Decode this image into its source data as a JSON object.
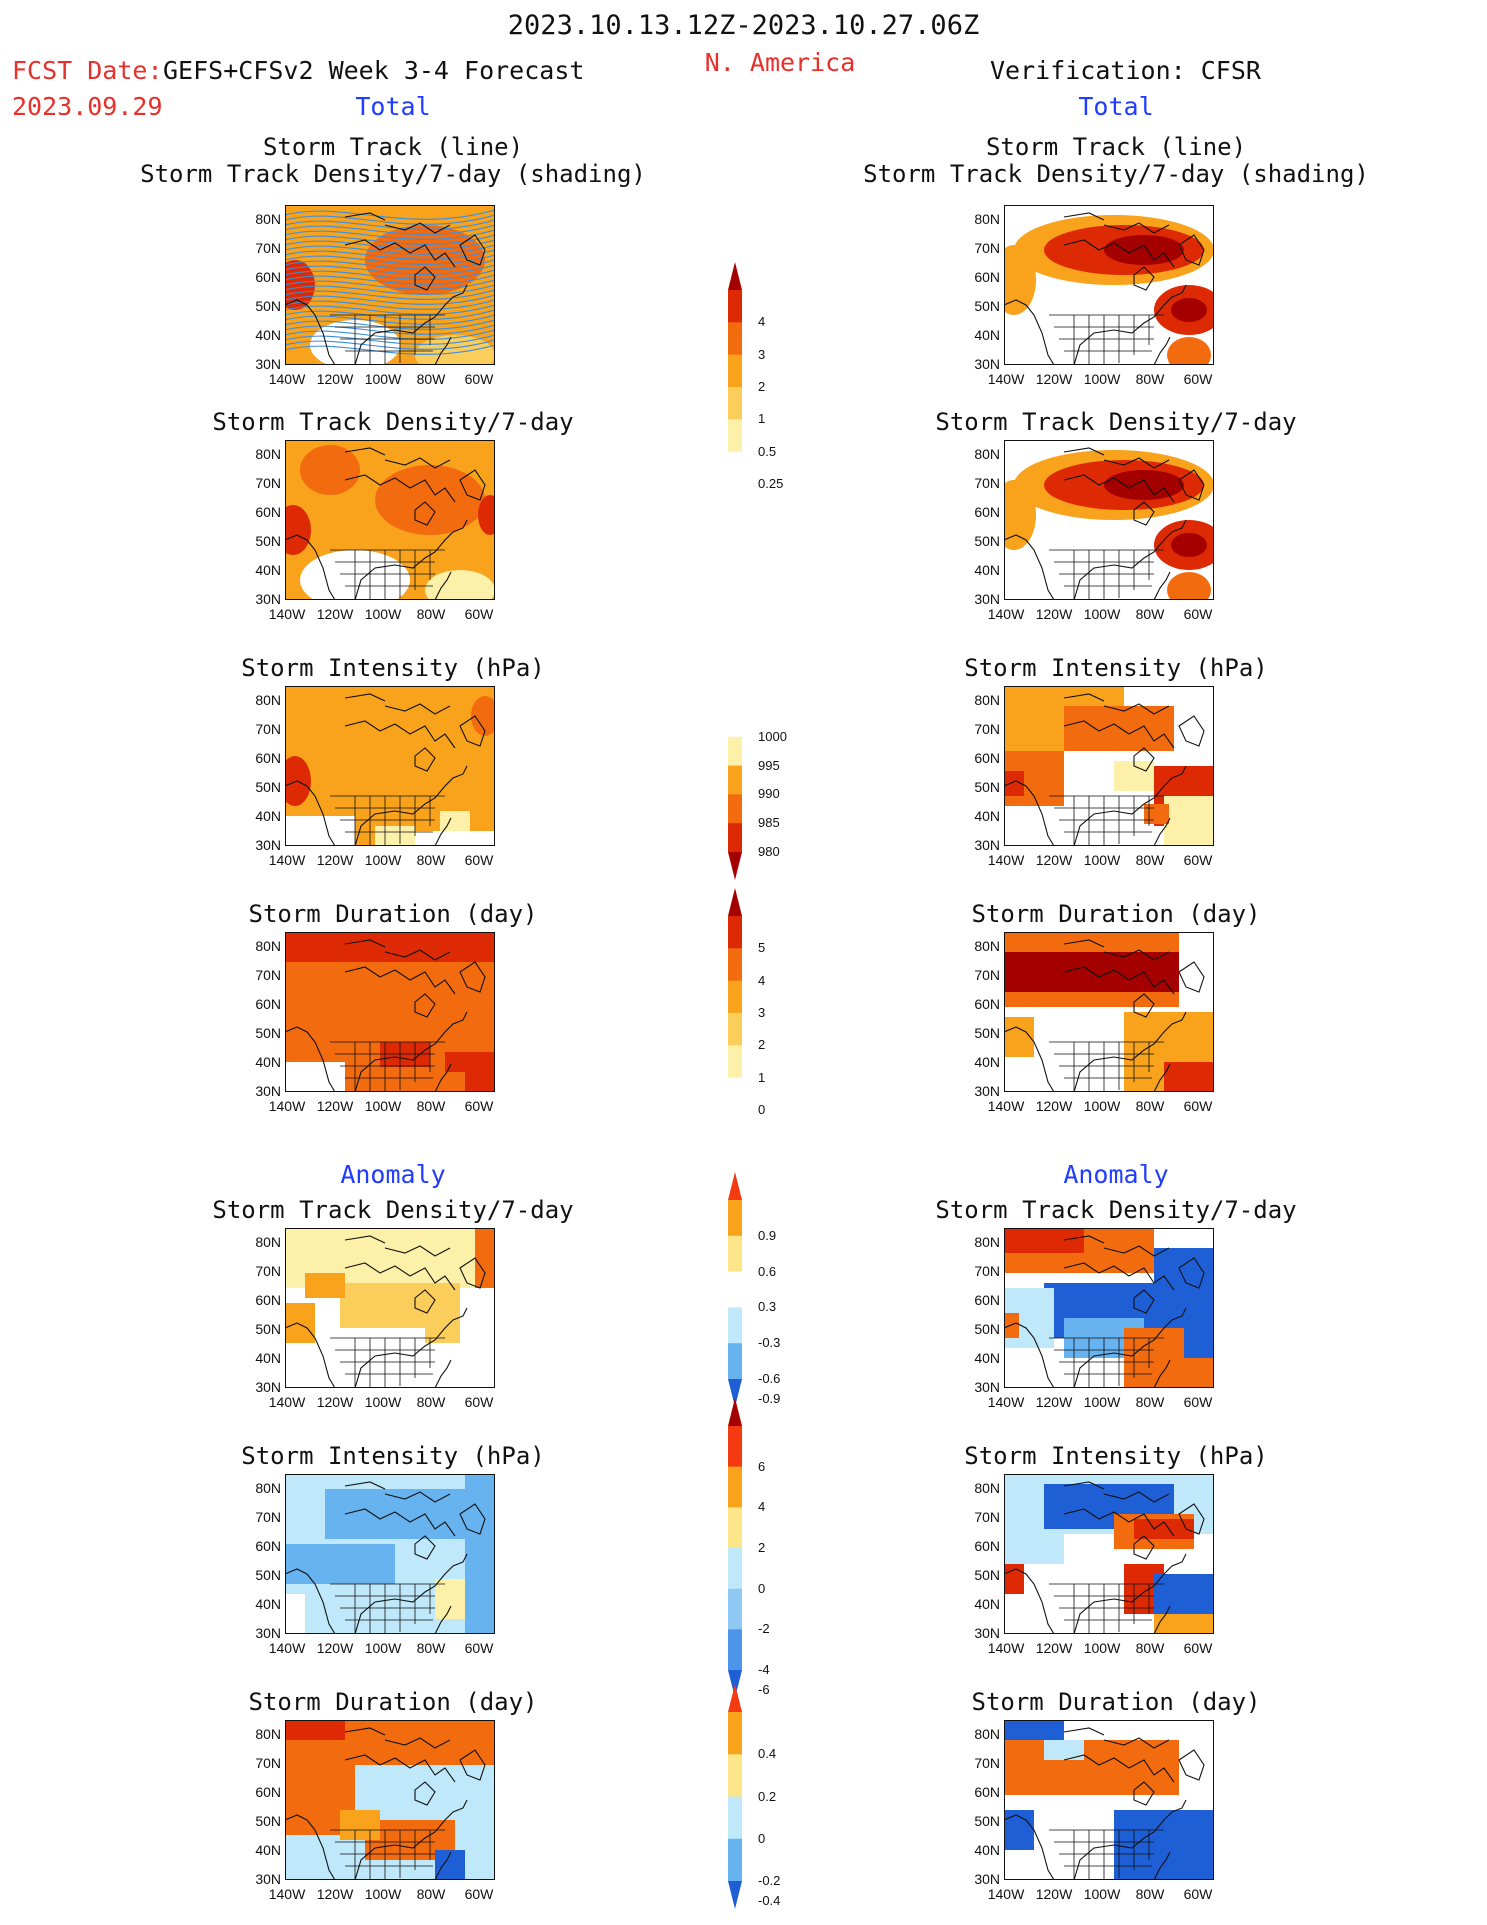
{
  "header": {
    "date_range": "2023.10.13.12Z-2023.10.27.06Z",
    "fcst_label": "FCST Date:",
    "model": "GEFS+CFSv2 Week 3-4 Forecast",
    "fcst_date": "2023.09.29",
    "region": "N. America",
    "verification": "Verification: CFSR",
    "total_left": "Total",
    "total_right": "Total",
    "anomaly_left": "Anomaly",
    "anomaly_right": "Anomaly"
  },
  "titles": {
    "track_line": "Storm Track (line)",
    "track_shading": "Storm Track Density/7-day (shading)",
    "density": "Storm Track Density/7-day",
    "intensity": "Storm Intensity (hPa)",
    "duration": "Storm Duration (day)"
  },
  "axes": {
    "lat_labels": [
      "80N",
      "70N",
      "60N",
      "50N",
      "40N",
      "30N"
    ],
    "lon_labels": [
      "140W",
      "120W",
      "100W",
      "80W",
      "60W"
    ]
  },
  "colorbars": {
    "density_total": {
      "ticks": [
        "4",
        "3",
        "2",
        "1",
        "0.5",
        "0.25"
      ],
      "colors": [
        "#a50000",
        "#dd2a05",
        "#f36b0f",
        "#f9a21b",
        "#fbcd5a",
        "#fdf0a8",
        "#ffffff"
      ]
    },
    "intensity_total": {
      "ticks": [
        "1000",
        "995",
        "990",
        "985",
        "980"
      ],
      "colors": [
        "#ffffff",
        "#fdf0a8",
        "#f9a21b",
        "#f36b0f",
        "#dd2a05",
        "#a50000"
      ]
    },
    "duration_total": {
      "ticks": [
        "5",
        "4",
        "3",
        "2",
        "1",
        "0"
      ],
      "colors": [
        "#a50000",
        "#dd2a05",
        "#f36b0f",
        "#f9a21b",
        "#fbcd5a",
        "#fdf0a8",
        "#ffffff"
      ]
    },
    "density_anom": {
      "ticks": [
        "0.9",
        "0.6",
        "0.3",
        "-0.3",
        "-0.6",
        "-0.9"
      ],
      "colors": [
        "#f33a10",
        "#f9a21b",
        "#fde58a",
        "#ffffff",
        "#bfe8fa",
        "#66b3f0",
        "#1e5fd6"
      ]
    },
    "intensity_anom": {
      "ticks": [
        "6",
        "4",
        "2",
        "0",
        "-2",
        "-4",
        "-6"
      ],
      "colors": [
        "#a50000",
        "#f33a10",
        "#f9a21b",
        "#fde58a",
        "#bfe8fa",
        "#8fc8f5",
        "#4d95ea",
        "#1e5fd6"
      ]
    },
    "duration_anom": {
      "ticks": [
        "0.4",
        "0.2",
        "0",
        "-0.2",
        "-0.4"
      ],
      "colors": [
        "#f33a10",
        "#f9a21b",
        "#fde58a",
        "#bfe8fa",
        "#66b3f0",
        "#1e5fd6"
      ]
    }
  },
  "colors": {
    "title_red": "#e8302a",
    "label_blue": "#1f3cff",
    "track_line": "#3a8fe0"
  }
}
